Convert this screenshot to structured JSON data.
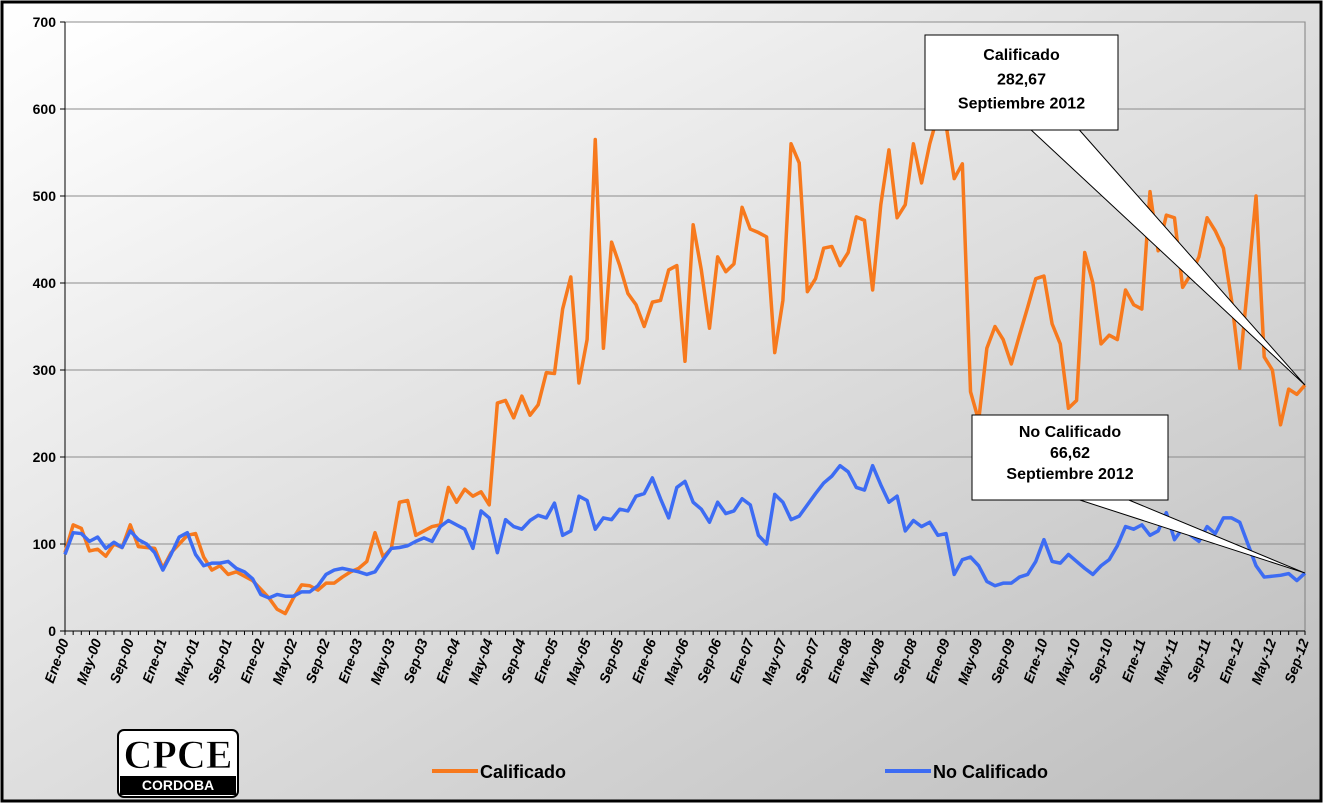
{
  "chart_data": {
    "type": "line",
    "categories": [
      "Ene-00",
      null,
      null,
      null,
      "May-00",
      null,
      null,
      null,
      "Sep-00",
      null,
      null,
      null,
      "Ene-01",
      null,
      null,
      null,
      "May-01",
      null,
      null,
      null,
      "Sep-01",
      null,
      null,
      null,
      "Ene-02",
      null,
      null,
      null,
      "May-02",
      null,
      null,
      null,
      "Sep-02",
      null,
      null,
      null,
      "Ene-03",
      null,
      null,
      null,
      "May-03",
      null,
      null,
      null,
      "Sep-03",
      null,
      null,
      null,
      "Ene-04",
      null,
      null,
      null,
      "May-04",
      null,
      null,
      null,
      "Sep-04",
      null,
      null,
      null,
      "Ene-05",
      null,
      null,
      null,
      "May-05",
      null,
      null,
      null,
      "Sep-05",
      null,
      null,
      null,
      "Ene-06",
      null,
      null,
      null,
      "May-06",
      null,
      null,
      null,
      "Sep-06",
      null,
      null,
      null,
      "Ene-07",
      null,
      null,
      null,
      "May-07",
      null,
      null,
      null,
      "Sep-07",
      null,
      null,
      null,
      "Ene-08",
      null,
      null,
      null,
      "May-08",
      null,
      null,
      null,
      "Sep-08",
      null,
      null,
      null,
      "Ene-09",
      null,
      null,
      null,
      "May-09",
      null,
      null,
      null,
      "Sep-09",
      null,
      null,
      null,
      "Ene-10",
      null,
      null,
      null,
      "May-10",
      null,
      null,
      null,
      "Sep-10",
      null,
      null,
      null,
      "Ene-11",
      null,
      null,
      null,
      "May-11",
      null,
      null,
      null,
      "Sep-11",
      null,
      null,
      null,
      "Ene-12",
      null,
      null,
      null,
      "May-12",
      null,
      null,
      null,
      "Sep-12"
    ],
    "series": [
      {
        "name": "Calificado",
        "color": "#f7791d",
        "values": [
          90,
          122,
          118,
          92,
          94,
          86,
          100,
          96,
          122,
          97,
          96,
          95,
          72,
          90,
          100,
          110,
          112,
          85,
          70,
          75,
          65,
          68,
          63,
          58,
          48,
          38,
          25,
          20,
          38,
          53,
          52,
          47,
          55,
          55,
          62,
          68,
          72,
          80,
          113,
          85,
          95,
          148,
          150,
          110,
          115,
          120,
          122,
          165,
          148,
          163,
          155,
          160,
          145,
          262,
          265,
          245,
          270,
          248,
          260,
          297,
          296,
          370,
          407,
          285,
          335,
          565,
          325,
          447,
          420,
          388,
          375,
          350,
          378,
          380,
          415,
          420,
          310,
          467,
          415,
          348,
          430,
          413,
          422,
          487,
          462,
          458,
          453,
          320,
          380,
          560,
          538,
          390,
          405,
          440,
          442,
          420,
          435,
          476,
          472,
          392,
          490,
          553,
          475,
          490,
          560,
          515,
          560,
          593,
          582,
          520,
          537,
          275,
          242,
          325,
          350,
          335,
          307,
          340,
          372,
          405,
          408,
          353,
          330,
          256,
          265,
          435,
          400,
          330,
          340,
          335,
          392,
          375,
          370,
          505,
          437,
          478,
          475,
          395,
          410,
          430,
          475,
          460,
          440,
          380,
          302,
          400,
          500,
          315,
          300,
          237,
          278,
          272,
          282.67
        ]
      },
      {
        "name": "No Calificado",
        "color": "#3d6cf3",
        "values": [
          88,
          113,
          112,
          103,
          108,
          95,
          102,
          96,
          115,
          105,
          100,
          90,
          70,
          88,
          108,
          113,
          88,
          75,
          78,
          78,
          80,
          72,
          68,
          60,
          42,
          38,
          42,
          40,
          40,
          45,
          45,
          52,
          65,
          70,
          72,
          70,
          68,
          65,
          68,
          82,
          95,
          96,
          98,
          103,
          107,
          103,
          120,
          127,
          122,
          117,
          95,
          138,
          130,
          90,
          128,
          120,
          117,
          127,
          133,
          130,
          147,
          110,
          115,
          155,
          150,
          117,
          130,
          128,
          140,
          138,
          155,
          158,
          176,
          152,
          130,
          165,
          172,
          148,
          140,
          125,
          148,
          135,
          138,
          152,
          145,
          110,
          100,
          157,
          148,
          128,
          132,
          145,
          158,
          170,
          178,
          190,
          183,
          165,
          162,
          190,
          168,
          148,
          155,
          115,
          127,
          120,
          125,
          110,
          112,
          65,
          82,
          85,
          75,
          57,
          52,
          55,
          55,
          62,
          65,
          80,
          105,
          80,
          78,
          88,
          80,
          72,
          65,
          75,
          82,
          98,
          120,
          117,
          122,
          110,
          115,
          136,
          105,
          118,
          110,
          103,
          120,
          112,
          130,
          130,
          125,
          100,
          75,
          62,
          63,
          64,
          66,
          58,
          66.62
        ]
      }
    ],
    "ylim": [
      0,
      700
    ],
    "yticks": [
      0,
      100,
      200,
      300,
      400,
      500,
      600,
      700
    ],
    "grid": true,
    "annotations": [
      {
        "series": 0,
        "lines": [
          "Calificado",
          "282,67",
          "Septiembre 2012"
        ]
      },
      {
        "series": 1,
        "lines": [
          "No Calificado",
          "66,62",
          "Septiembre 2012"
        ]
      }
    ],
    "logo": {
      "title": "CPCE",
      "subtitle": "CORDOBA"
    }
  }
}
